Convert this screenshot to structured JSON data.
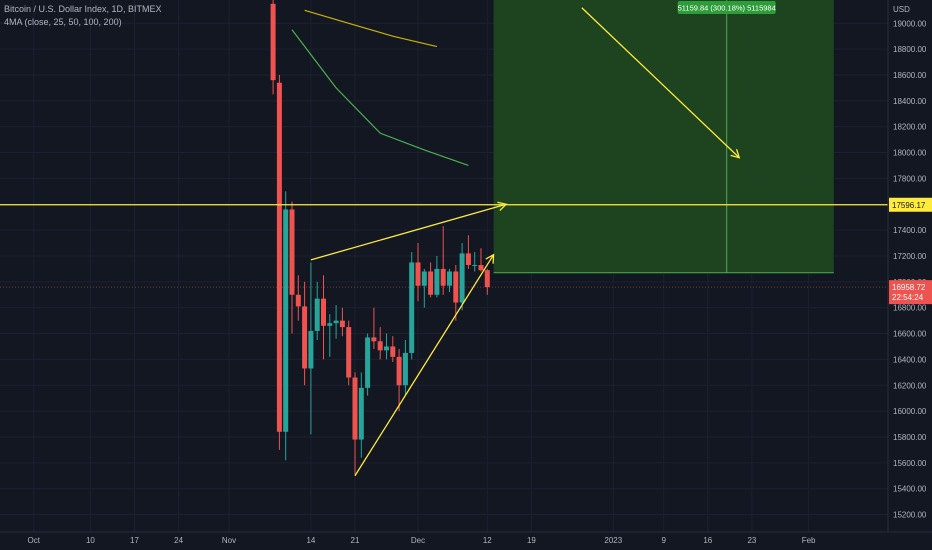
{
  "legend": {
    "symbol": "Bitcoin / U.S. Dollar Index, 1D, BITMEX",
    "indicator": "4MA (close, 25, 50, 100, 200)"
  },
  "colors": {
    "background": "#131722",
    "up": "#26a69a",
    "down": "#ef5350",
    "annotation": "#ffeb3b",
    "target_box": "#1e4620",
    "target_border": "#4caf50",
    "ma_green": "#4caf50",
    "ma_olive": "#c8b400",
    "axis_text": "#b2b5be",
    "price_badge": "#ef5350",
    "level_badge": "#ffeb3b"
  },
  "chart_data": {
    "type": "candlestick",
    "y_axis": {
      "unit_label": "USD",
      "ticks": [
        15200,
        15400,
        15600,
        15800,
        16000,
        16200,
        16400,
        16600,
        16800,
        17000,
        17200,
        17400,
        17600,
        17800,
        18000,
        18200,
        18400,
        18600,
        18800,
        19000
      ],
      "ylim": [
        15065,
        19180
      ]
    },
    "x_axis": {
      "tick_labels": [
        "Oct",
        "10",
        "17",
        "24",
        "Nov",
        "14",
        "21",
        "Dec",
        "12",
        "19",
        "2023",
        "9",
        "16",
        "23",
        "Feb"
      ],
      "tick_dates": [
        "2022-10-01",
        "2022-10-10",
        "2022-10-17",
        "2022-10-24",
        "2022-11-01",
        "2022-11-14",
        "2022-11-21",
        "2022-12-01",
        "2022-12-12",
        "2022-12-19",
        "2023-01-01",
        "2023-01-09",
        "2023-01-16",
        "2023-01-23",
        "2023-02-01"
      ]
    },
    "candles": [
      {
        "date": "2022-11-08",
        "open": 19150,
        "high": 19300,
        "low": 18450,
        "close": 18560
      },
      {
        "date": "2022-11-09",
        "open": 18540,
        "high": 18600,
        "low": 15700,
        "close": 15840
      },
      {
        "date": "2022-11-10",
        "open": 15840,
        "high": 17700,
        "low": 15620,
        "close": 17560
      },
      {
        "date": "2022-11-11",
        "open": 17560,
        "high": 17620,
        "low": 16600,
        "close": 16900
      },
      {
        "date": "2022-11-12",
        "open": 16900,
        "high": 17050,
        "low": 16700,
        "close": 16810
      },
      {
        "date": "2022-11-13",
        "open": 16810,
        "high": 17000,
        "low": 16200,
        "close": 16330
      },
      {
        "date": "2022-11-14",
        "open": 16330,
        "high": 17150,
        "low": 15820,
        "close": 16620
      },
      {
        "date": "2022-11-15",
        "open": 16620,
        "high": 17000,
        "low": 16550,
        "close": 16870
      },
      {
        "date": "2022-11-16",
        "open": 16870,
        "high": 17050,
        "low": 16400,
        "close": 16660
      },
      {
        "date": "2022-11-17",
        "open": 16660,
        "high": 16750,
        "low": 16420,
        "close": 16680
      },
      {
        "date": "2022-11-18",
        "open": 16680,
        "high": 16820,
        "low": 16560,
        "close": 16700
      },
      {
        "date": "2022-11-19",
        "open": 16700,
        "high": 16800,
        "low": 16580,
        "close": 16650
      },
      {
        "date": "2022-11-20",
        "open": 16650,
        "high": 16700,
        "low": 16200,
        "close": 16260
      },
      {
        "date": "2022-11-21",
        "open": 16260,
        "high": 16300,
        "low": 15500,
        "close": 15780
      },
      {
        "date": "2022-11-22",
        "open": 15780,
        "high": 16300,
        "low": 15640,
        "close": 16180
      },
      {
        "date": "2022-11-23",
        "open": 16180,
        "high": 16600,
        "low": 16120,
        "close": 16570
      },
      {
        "date": "2022-11-24",
        "open": 16570,
        "high": 16800,
        "low": 16480,
        "close": 16540
      },
      {
        "date": "2022-11-25",
        "open": 16540,
        "high": 16650,
        "low": 16400,
        "close": 16470
      },
      {
        "date": "2022-11-26",
        "open": 16470,
        "high": 16600,
        "low": 16400,
        "close": 16500
      },
      {
        "date": "2022-11-27",
        "open": 16500,
        "high": 16580,
        "low": 16380,
        "close": 16420
      },
      {
        "date": "2022-11-28",
        "open": 16420,
        "high": 16480,
        "low": 16000,
        "close": 16200
      },
      {
        "date": "2022-11-29",
        "open": 16200,
        "high": 16550,
        "low": 16120,
        "close": 16450
      },
      {
        "date": "2022-11-30",
        "open": 16450,
        "high": 17230,
        "low": 16400,
        "close": 17150
      },
      {
        "date": "2022-12-01",
        "open": 17150,
        "high": 17300,
        "low": 16850,
        "close": 16970
      },
      {
        "date": "2022-12-02",
        "open": 16970,
        "high": 17100,
        "low": 16800,
        "close": 17080
      },
      {
        "date": "2022-12-03",
        "open": 17080,
        "high": 17150,
        "low": 16880,
        "close": 16900
      },
      {
        "date": "2022-12-04",
        "open": 16900,
        "high": 17200,
        "low": 16880,
        "close": 17100
      },
      {
        "date": "2022-12-05",
        "open": 17100,
        "high": 17430,
        "low": 16900,
        "close": 16970
      },
      {
        "date": "2022-12-06",
        "open": 16970,
        "high": 17100,
        "low": 16920,
        "close": 17080
      },
      {
        "date": "2022-12-07",
        "open": 17080,
        "high": 17130,
        "low": 16700,
        "close": 16840
      },
      {
        "date": "2022-12-08",
        "open": 16840,
        "high": 17300,
        "low": 16780,
        "close": 17220
      },
      {
        "date": "2022-12-09",
        "open": 17220,
        "high": 17360,
        "low": 17100,
        "close": 17130
      },
      {
        "date": "2022-12-10",
        "open": 17130,
        "high": 17230,
        "low": 17080,
        "close": 17130
      },
      {
        "date": "2022-12-11",
        "open": 17130,
        "high": 17260,
        "low": 17080,
        "close": 17090
      },
      {
        "date": "2022-12-12",
        "open": 17090,
        "high": 17100,
        "low": 16900,
        "close": 16959
      }
    ],
    "moving_averages": [
      {
        "color": "olive",
        "points": [
          [
            "2022-11-13",
            19100
          ],
          [
            "2022-11-20",
            19000
          ],
          [
            "2022-11-27",
            18900
          ],
          [
            "2022-12-04",
            18820
          ]
        ]
      },
      {
        "color": "green",
        "points": [
          [
            "2022-11-11",
            18950
          ],
          [
            "2022-11-18",
            18500
          ],
          [
            "2022-11-25",
            18150
          ],
          [
            "2022-12-02",
            18020
          ],
          [
            "2022-12-09",
            17900
          ]
        ]
      }
    ],
    "horizontal_level": {
      "price": 17596.17,
      "label": "17596.17"
    },
    "current_price": {
      "label": "16958.72",
      "countdown": "22:54:24"
    },
    "target_zone": {
      "start_date": "2022-12-13",
      "end_date": "2023-02-05",
      "bottom_price": 17070,
      "top_price": 19180,
      "label": "51159.84 (300.18%) 5115984"
    },
    "trendlines": [
      {
        "from": [
          "2022-11-21",
          15500
        ],
        "to": [
          "2022-12-13",
          17210
        ],
        "arrow": true
      },
      {
        "from": [
          "2022-11-14",
          17170
        ],
        "to": [
          "2022-12-15",
          17600
        ],
        "arrow": true
      },
      {
        "from": [
          "2022-12-27",
          19120
        ],
        "to": [
          "2023-01-21",
          17960
        ],
        "arrow": true
      }
    ],
    "vertical_line_date": "2023-01-19"
  }
}
